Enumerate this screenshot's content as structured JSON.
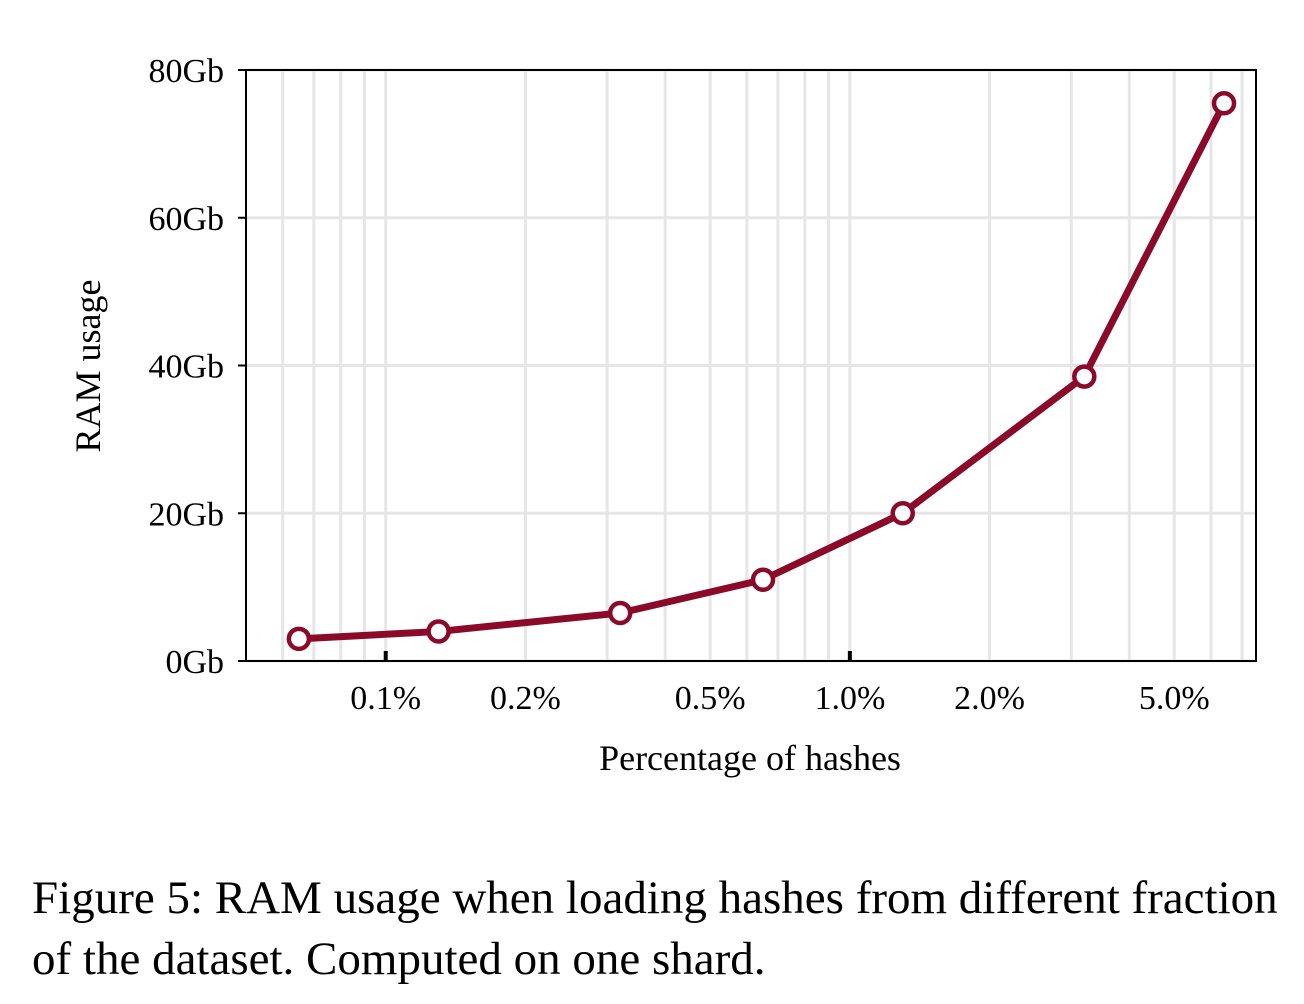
{
  "chart_data": {
    "type": "line",
    "x_scale": "log",
    "x": [
      0.065,
      0.13,
      0.32,
      0.65,
      1.3,
      3.2,
      6.4
    ],
    "series": [
      {
        "values": [
          3,
          4,
          6.5,
          11,
          20,
          38.5,
          75.5
        ],
        "color": "#8b0a2a"
      }
    ],
    "xticks": [
      {
        "value": 0.1,
        "label": "0.1%"
      },
      {
        "value": 0.2,
        "label": "0.2%"
      },
      {
        "value": 0.5,
        "label": "0.5%"
      },
      {
        "value": 1.0,
        "label": "1.0%"
      },
      {
        "value": 2.0,
        "label": "2.0%"
      },
      {
        "value": 5.0,
        "label": "5.0%"
      }
    ],
    "yticks": [
      {
        "value": 0,
        "label": "0Gb"
      },
      {
        "value": 20,
        "label": "20Gb"
      },
      {
        "value": 40,
        "label": "40Gb"
      },
      {
        "value": 60,
        "label": "60Gb"
      },
      {
        "value": 80,
        "label": "80Gb"
      }
    ],
    "xlim": [
      0.05,
      7.5
    ],
    "ylim": [
      0,
      80
    ],
    "xlabel": "Percentage of hashes",
    "ylabel": "RAM usage",
    "grid": true,
    "title": ""
  },
  "caption": "Figure 5: RAM usage when loading hashes from different fraction of the dataset. Computed on one shard."
}
